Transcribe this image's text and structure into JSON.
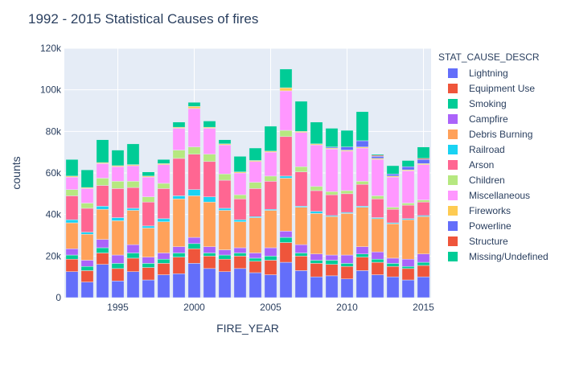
{
  "chart_data": {
    "type": "bar",
    "barmode": "stack",
    "title": "1992 - 2015 Statistical Causes of fires",
    "xlabel": "FIRE_YEAR",
    "ylabel": "counts",
    "legend_title": "STAT_CAUSE_DESCR",
    "legend_position": "right",
    "grid": true,
    "xlim": [
      1991.5,
      2015.5
    ],
    "ylim": [
      0,
      120000
    ],
    "x_ticks": [
      1995,
      2000,
      2005,
      2010,
      2015
    ],
    "y_ticks": [
      0,
      20000,
      40000,
      60000,
      80000,
      100000,
      120000
    ],
    "y_tick_labels": [
      "0",
      "20k",
      "40k",
      "60k",
      "80k",
      "100k",
      "120k"
    ],
    "categories": [
      1992,
      1993,
      1994,
      1995,
      1996,
      1997,
      1998,
      1999,
      2000,
      2001,
      2002,
      2003,
      2004,
      2005,
      2006,
      2007,
      2008,
      2009,
      2010,
      2011,
      2012,
      2013,
      2014,
      2015
    ],
    "series": [
      {
        "name": "Lightning",
        "color": "#636efa",
        "values": [
          12500,
          7500,
          16000,
          8000,
          12500,
          8500,
          11000,
          11500,
          16500,
          14000,
          12500,
          14000,
          12000,
          11000,
          17000,
          13000,
          10000,
          10500,
          9000,
          13000,
          11000,
          10000,
          8500,
          10000
        ]
      },
      {
        "name": "Equipment Use",
        "color": "#ef553b",
        "values": [
          6000,
          5500,
          5500,
          6000,
          6500,
          6000,
          5500,
          8000,
          7000,
          6000,
          6000,
          6000,
          5500,
          7000,
          9500,
          7000,
          6500,
          5500,
          6000,
          6500,
          6000,
          5000,
          5500,
          5500
        ]
      },
      {
        "name": "Smoking",
        "color": "#00cc96",
        "values": [
          2000,
          2000,
          2500,
          2500,
          2500,
          2000,
          2000,
          2000,
          2500,
          1500,
          2000,
          1500,
          1500,
          2000,
          2500,
          1500,
          1500,
          2000,
          1500,
          1500,
          1500,
          1500,
          1000,
          1500
        ]
      },
      {
        "name": "Campfire",
        "color": "#ab63fa",
        "values": [
          3000,
          3000,
          4000,
          4000,
          4000,
          3000,
          3000,
          3000,
          3000,
          3000,
          2500,
          2500,
          2500,
          4000,
          3000,
          4000,
          3000,
          2500,
          4000,
          3500,
          3500,
          2500,
          3500,
          4000
        ]
      },
      {
        "name": "Debris Burning",
        "color": "#ffa15a",
        "values": [
          12500,
          12500,
          14500,
          16500,
          16500,
          14000,
          15000,
          23000,
          20000,
          21500,
          19000,
          12500,
          17000,
          18000,
          25500,
          18000,
          19500,
          18500,
          20000,
          19000,
          16000,
          16500,
          19000,
          18000
        ]
      },
      {
        "name": "Railroad",
        "color": "#19d3f3",
        "values": [
          1500,
          1000,
          1500,
          1500,
          1000,
          1000,
          1500,
          1500,
          3000,
          2500,
          1000,
          1000,
          500,
          500,
          1000,
          500,
          1000,
          500,
          500,
          500,
          500,
          500,
          500,
          500
        ]
      },
      {
        "name": "Arson",
        "color": "#ff6692",
        "values": [
          11500,
          11500,
          10000,
          14000,
          10000,
          11500,
          14500,
          18000,
          17000,
          17000,
          13500,
          10000,
          13500,
          13500,
          19000,
          16500,
          10000,
          10000,
          9000,
          10500,
          9000,
          6500,
          6500,
          6500
        ]
      },
      {
        "name": "Children",
        "color": "#b6e880",
        "values": [
          3000,
          2500,
          3500,
          3500,
          3000,
          2500,
          2500,
          4000,
          3500,
          3500,
          3000,
          2000,
          3000,
          2500,
          3000,
          2500,
          2000,
          1500,
          1500,
          1500,
          1500,
          1000,
          1000,
          1000
        ]
      },
      {
        "name": "Miscellaneous",
        "color": "#ff97ff",
        "values": [
          6000,
          7000,
          7000,
          7000,
          7500,
          9500,
          9000,
          10500,
          18500,
          12500,
          14000,
          10500,
          10000,
          11500,
          19000,
          16500,
          20000,
          20500,
          19000,
          16000,
          17500,
          14500,
          15500,
          17000
        ]
      },
      {
        "name": "Fireworks",
        "color": "#fecb52",
        "values": [
          500,
          500,
          500,
          500,
          500,
          500,
          500,
          500,
          1000,
          500,
          500,
          500,
          500,
          500,
          1500,
          500,
          500,
          500,
          500,
          500,
          500,
          500,
          500,
          500
        ]
      },
      {
        "name": "Powerline",
        "color": "#636efa",
        "values": [
          0,
          0,
          0,
          0,
          0,
          0,
          0,
          0,
          0,
          0,
          0,
          0,
          0,
          0,
          0,
          0,
          0,
          500,
          1500,
          3000,
          1000,
          1000,
          1500,
          2000
        ]
      },
      {
        "name": "Structure",
        "color": "#ef553b",
        "values": [
          0,
          0,
          0,
          0,
          0,
          0,
          0,
          0,
          0,
          0,
          0,
          0,
          0,
          0,
          0,
          0,
          0,
          0,
          0,
          0,
          500,
          0,
          0,
          500
        ]
      },
      {
        "name": "Missing/Undefined",
        "color": "#00cc96",
        "values": [
          8000,
          8500,
          11000,
          7500,
          10000,
          2000,
          2000,
          2500,
          2000,
          3000,
          2000,
          7500,
          6000,
          12000,
          9000,
          14500,
          10500,
          9000,
          8000,
          14000,
          500,
          4000,
          3000,
          5500
        ]
      }
    ]
  }
}
